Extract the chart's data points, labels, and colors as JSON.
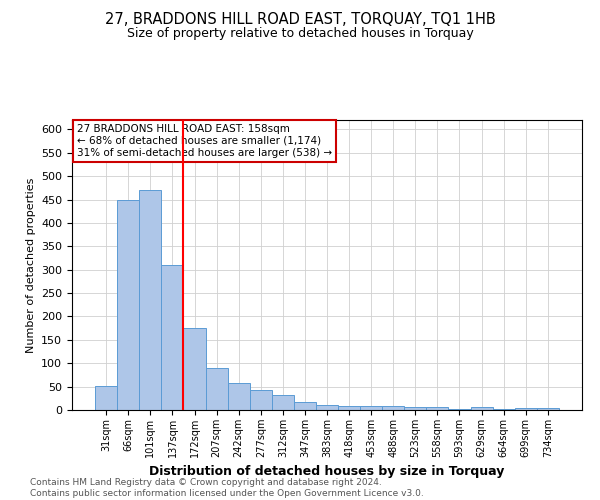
{
  "title": "27, BRADDONS HILL ROAD EAST, TORQUAY, TQ1 1HB",
  "subtitle": "Size of property relative to detached houses in Torquay",
  "xlabel": "Distribution of detached houses by size in Torquay",
  "ylabel": "Number of detached properties",
  "footnote1": "Contains HM Land Registry data © Crown copyright and database right 2024.",
  "footnote2": "Contains public sector information licensed under the Open Government Licence v3.0.",
  "categories": [
    "31sqm",
    "66sqm",
    "101sqm",
    "137sqm",
    "172sqm",
    "207sqm",
    "242sqm",
    "277sqm",
    "312sqm",
    "347sqm",
    "383sqm",
    "418sqm",
    "453sqm",
    "488sqm",
    "523sqm",
    "558sqm",
    "593sqm",
    "629sqm",
    "664sqm",
    "699sqm",
    "734sqm"
  ],
  "values": [
    52,
    450,
    470,
    310,
    175,
    90,
    57,
    42,
    32,
    18,
    10,
    9,
    9,
    8,
    6,
    7,
    3,
    6,
    3,
    5,
    4
  ],
  "bar_color": "#aec6e8",
  "bar_edge_color": "#5b9bd5",
  "red_line_x": 3.5,
  "annotation_text1": "27 BRADDONS HILL ROAD EAST: 158sqm",
  "annotation_text2": "← 68% of detached houses are smaller (1,174)",
  "annotation_text3": "31% of semi-detached houses are larger (538) →",
  "annotation_box_color": "#ffffff",
  "annotation_box_edge": "#cc0000",
  "ylim": [
    0,
    620
  ],
  "yticks": [
    0,
    50,
    100,
    150,
    200,
    250,
    300,
    350,
    400,
    450,
    500,
    550,
    600
  ],
  "title_fontsize": 10.5,
  "subtitle_fontsize": 9,
  "xlabel_fontsize": 9,
  "ylabel_fontsize": 8,
  "tick_fontsize": 8,
  "annot_fontsize": 7.5,
  "footnote_fontsize": 6.5
}
